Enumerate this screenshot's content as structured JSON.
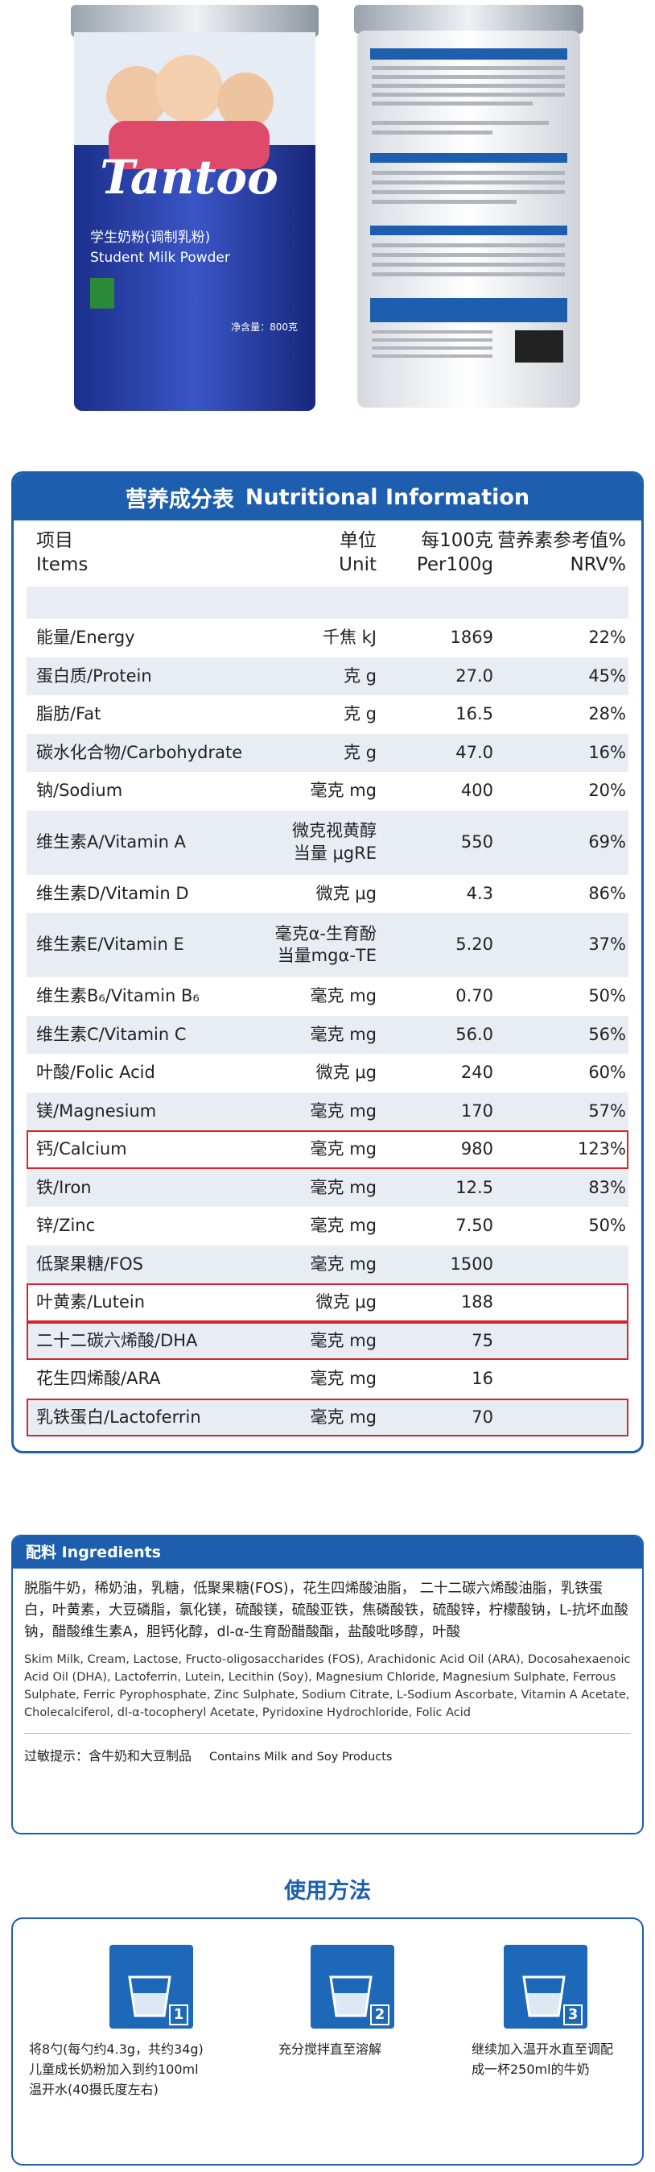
{
  "product": {
    "brand": "Tantoo",
    "name_cn": "学生奶粉(调制乳粉)",
    "name_en": "Student Milk Powder",
    "net": "净含量：800克"
  },
  "nutrition": {
    "title_cn": "营养成分表",
    "title_en": "Nutritional Information",
    "columns": [
      "项目\nItems",
      "单位\nUnit",
      "每100克\nPer100g",
      "营养素参考值%\nNRV%"
    ],
    "rows": [
      {
        "name": "能量/Energy",
        "unit": "千焦 kJ",
        "value": "1869",
        "nrv": "22%"
      },
      {
        "name": "蛋白质/Protein",
        "unit": "克 g",
        "value": "27.0",
        "nrv": "45%"
      },
      {
        "name": "脂肪/Fat",
        "unit": "克 g",
        "value": "16.5",
        "nrv": "28%"
      },
      {
        "name": "碳水化合物/Carbohydrate",
        "unit": "克 g",
        "value": "47.0",
        "nrv": "16%"
      },
      {
        "name": "钠/Sodium",
        "unit": "毫克 mg",
        "value": "400",
        "nrv": "20%"
      },
      {
        "name": "维生素A/Vitamin A",
        "unit": "微克视黄醇\n当量 μgRE",
        "value": "550",
        "nrv": "69%"
      },
      {
        "name": "维生素D/Vitamin D",
        "unit": "微克 μg",
        "value": "4.3",
        "nrv": "86%"
      },
      {
        "name": "维生素E/Vitamin E",
        "unit": "毫克α-生育酚\n当量mgα-TE",
        "value": "5.20",
        "nrv": "37%"
      },
      {
        "name": "维生素B₆/Vitamin B₆",
        "unit": "毫克 mg",
        "value": "0.70",
        "nrv": "50%"
      },
      {
        "name": "维生素C/Vitamin C",
        "unit": "毫克 mg",
        "value": "56.0",
        "nrv": "56%"
      },
      {
        "name": "叶酸/Folic Acid",
        "unit": "微克 μg",
        "value": "240",
        "nrv": "60%"
      },
      {
        "name": "镁/Magnesium",
        "unit": "毫克 mg",
        "value": "170",
        "nrv": "57%"
      },
      {
        "name": "钙/Calcium",
        "unit": "毫克 mg",
        "value": "980",
        "nrv": "123%",
        "highlight": true
      },
      {
        "name": "铁/Iron",
        "unit": "毫克 mg",
        "value": "12.5",
        "nrv": "83%"
      },
      {
        "name": "锌/Zinc",
        "unit": "毫克 mg",
        "value": "7.50",
        "nrv": "50%"
      },
      {
        "name": "低聚果糖/FOS",
        "unit": "毫克 mg",
        "value": "1500"
      },
      {
        "name": "叶黄素/Lutein",
        "unit": "微克 μg",
        "value": "188",
        "highlight": true
      },
      {
        "name": "二十二碳六烯酸/DHA",
        "unit": "毫克 mg",
        "value": "75",
        "highlight": true
      },
      {
        "name": "花生四烯酸/ARA",
        "unit": "毫克 mg",
        "value": "16"
      },
      {
        "name": "乳铁蛋白/Lactoferrin",
        "unit": "毫克 mg",
        "value": "70",
        "highlight": true
      }
    ]
  },
  "ingredients": {
    "title": "配料 Ingredients",
    "text_cn": "脱脂牛奶，稀奶油，乳糖，低聚果糖(FOS)，花生四烯酸油脂， 二十二碳六烯酸油脂，乳铁蛋白，叶黄素，大豆磷脂，氯化镁，硫酸镁，硫酸亚铁，焦磷酸铁，硫酸锌，柠檬酸钠，L-抗坏血酸钠，醋酸维生素A，胆钙化醇，dl-α-生育酚醋酸酯，盐酸吡哆醇，叶酸",
    "text_en": "Skim Milk, Cream, Lactose, Fructo-oligosaccharides (FOS), Arachidonic Acid Oil (ARA), Docosahexaenoic Acid Oil (DHA), Lactoferrin, Lutein, Lecithin (Soy), Magnesium Chloride, Magnesium Sulphate, Ferrous Sulphate, Ferric Pyrophosphate, Zinc Sulphate, Sodium Citrate, L-Sodium Ascorbate, Vitamin A Acetate, Cholecalciferol, dl-α-tocopheryl Acetate, Pyridoxine Hydrochloride, Folic Acid",
    "allergy_cn": "过敏提示：含牛奶和大豆制品",
    "allergy_en": "Contains Milk and Soy Products"
  },
  "usage": {
    "title": "使用方法",
    "steps": [
      {
        "num": "1",
        "text": "将8勺(每勺约4.3g，共约34g)儿童成长奶粉加入到约100ml温开水(40摄氏度左右)"
      },
      {
        "num": "2",
        "text": "充分搅拌直至溶解"
      },
      {
        "num": "3",
        "text": "继续加入温开水直至调配成一杯250ml的牛奶"
      }
    ]
  }
}
